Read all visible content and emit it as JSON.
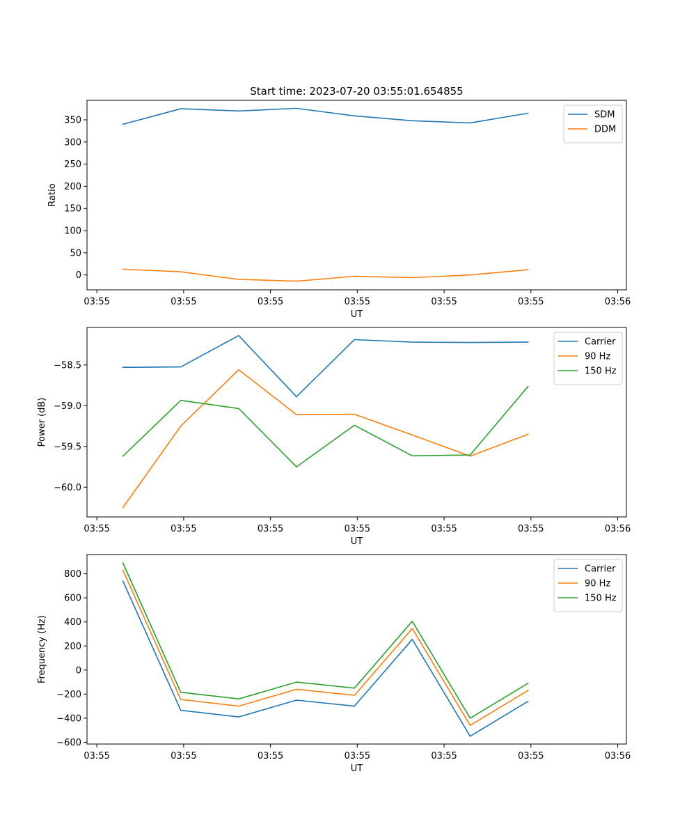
{
  "figure": {
    "title": "Start time: 2023-07-20 03:55:01.654855"
  },
  "colors": {
    "blue": "#1f77b4",
    "orange": "#ff7f0e",
    "green": "#2ca02c"
  },
  "chart_data": [
    {
      "type": "line",
      "title": "Start time: 2023-07-20 03:55:01.654855",
      "xlabel": "UT",
      "ylabel": "Ratio",
      "xlim": [
        -0.62,
        8.7
      ],
      "x_ticks": [
        {
          "x": -0.45,
          "label": "03:55"
        },
        {
          "x": 1.05,
          "label": "03:55"
        },
        {
          "x": 2.55,
          "label": "03:55"
        },
        {
          "x": 4.05,
          "label": "03:55"
        },
        {
          "x": 5.55,
          "label": "03:55"
        },
        {
          "x": 7.05,
          "label": "03:55"
        },
        {
          "x": 8.55,
          "label": "03:56"
        }
      ],
      "ylim": [
        -33.5,
        394
      ],
      "y_ticks": [
        0,
        50,
        100,
        150,
        200,
        250,
        300,
        350
      ],
      "legend": "top-right",
      "x": [
        0,
        1,
        2,
        3,
        4,
        5,
        6,
        7
      ],
      "series": [
        {
          "name": "SDM",
          "color": "#1f77b4",
          "values": [
            340,
            375,
            370,
            376,
            359,
            348,
            343,
            365
          ]
        },
        {
          "name": "DDM",
          "color": "#ff7f0e",
          "values": [
            13,
            7,
            -10,
            -14,
            -3,
            -6,
            0,
            12
          ]
        }
      ]
    },
    {
      "type": "line",
      "xlabel": "UT",
      "ylabel": "Power (dB)",
      "xlim": [
        -0.62,
        8.7
      ],
      "x_ticks": [
        {
          "x": -0.45,
          "label": "03:55"
        },
        {
          "x": 1.05,
          "label": "03:55"
        },
        {
          "x": 2.55,
          "label": "03:55"
        },
        {
          "x": 4.05,
          "label": "03:55"
        },
        {
          "x": 5.55,
          "label": "03:55"
        },
        {
          "x": 7.05,
          "label": "03:55"
        },
        {
          "x": 8.55,
          "label": "03:56"
        }
      ],
      "ylim": [
        -60.365,
        -58.04
      ],
      "y_ticks": [
        -60.0,
        -59.5,
        -59.0,
        -58.5
      ],
      "y_tick_labels": [
        "−60.0",
        "−59.5",
        "−59.0",
        "−58.5"
      ],
      "legend": "top-right",
      "x": [
        0,
        1,
        2,
        3,
        4,
        5,
        6,
        7
      ],
      "series": [
        {
          "name": "Carrier",
          "color": "#1f77b4",
          "values": [
            -58.53,
            -58.525,
            -58.14,
            -58.89,
            -58.19,
            -58.22,
            -58.225,
            -58.22
          ]
        },
        {
          "name": "90 Hz",
          "color": "#ff7f0e",
          "values": [
            -60.25,
            -59.25,
            -58.56,
            -59.11,
            -59.105,
            -59.36,
            -59.62,
            -59.35
          ]
        },
        {
          "name": "150 Hz",
          "color": "#2ca02c",
          "values": [
            -59.62,
            -58.935,
            -59.035,
            -59.75,
            -59.24,
            -59.615,
            -59.605,
            -58.765
          ]
        }
      ]
    },
    {
      "type": "line",
      "xlabel": "UT",
      "ylabel": "Frequency (Hz)",
      "xlim": [
        -0.62,
        8.7
      ],
      "x_ticks": [
        {
          "x": -0.45,
          "label": "03:55"
        },
        {
          "x": 1.05,
          "label": "03:55"
        },
        {
          "x": 2.55,
          "label": "03:55"
        },
        {
          "x": 4.05,
          "label": "03:55"
        },
        {
          "x": 5.55,
          "label": "03:55"
        },
        {
          "x": 7.05,
          "label": "03:55"
        },
        {
          "x": 8.55,
          "label": "03:56"
        }
      ],
      "ylim": [
        -615,
        960
      ],
      "y_ticks": [
        -600,
        -400,
        -200,
        0,
        200,
        400,
        600,
        800
      ],
      "y_tick_labels": [
        "−600",
        "−400",
        "−200",
        "0",
        "200",
        "400",
        "600",
        "800"
      ],
      "legend": "top-right",
      "x": [
        0,
        1,
        2,
        3,
        4,
        5,
        6,
        7
      ],
      "series": [
        {
          "name": "Carrier",
          "color": "#1f77b4",
          "values": [
            740,
            -335,
            -390,
            -250,
            -300,
            255,
            -550,
            -260
          ]
        },
        {
          "name": "90 Hz",
          "color": "#ff7f0e",
          "values": [
            830,
            -245,
            -300,
            -160,
            -210,
            345,
            -460,
            -170
          ]
        },
        {
          "name": "150 Hz",
          "color": "#2ca02c",
          "values": [
            890,
            -185,
            -240,
            -100,
            -150,
            405,
            -400,
            -110
          ]
        }
      ]
    }
  ]
}
